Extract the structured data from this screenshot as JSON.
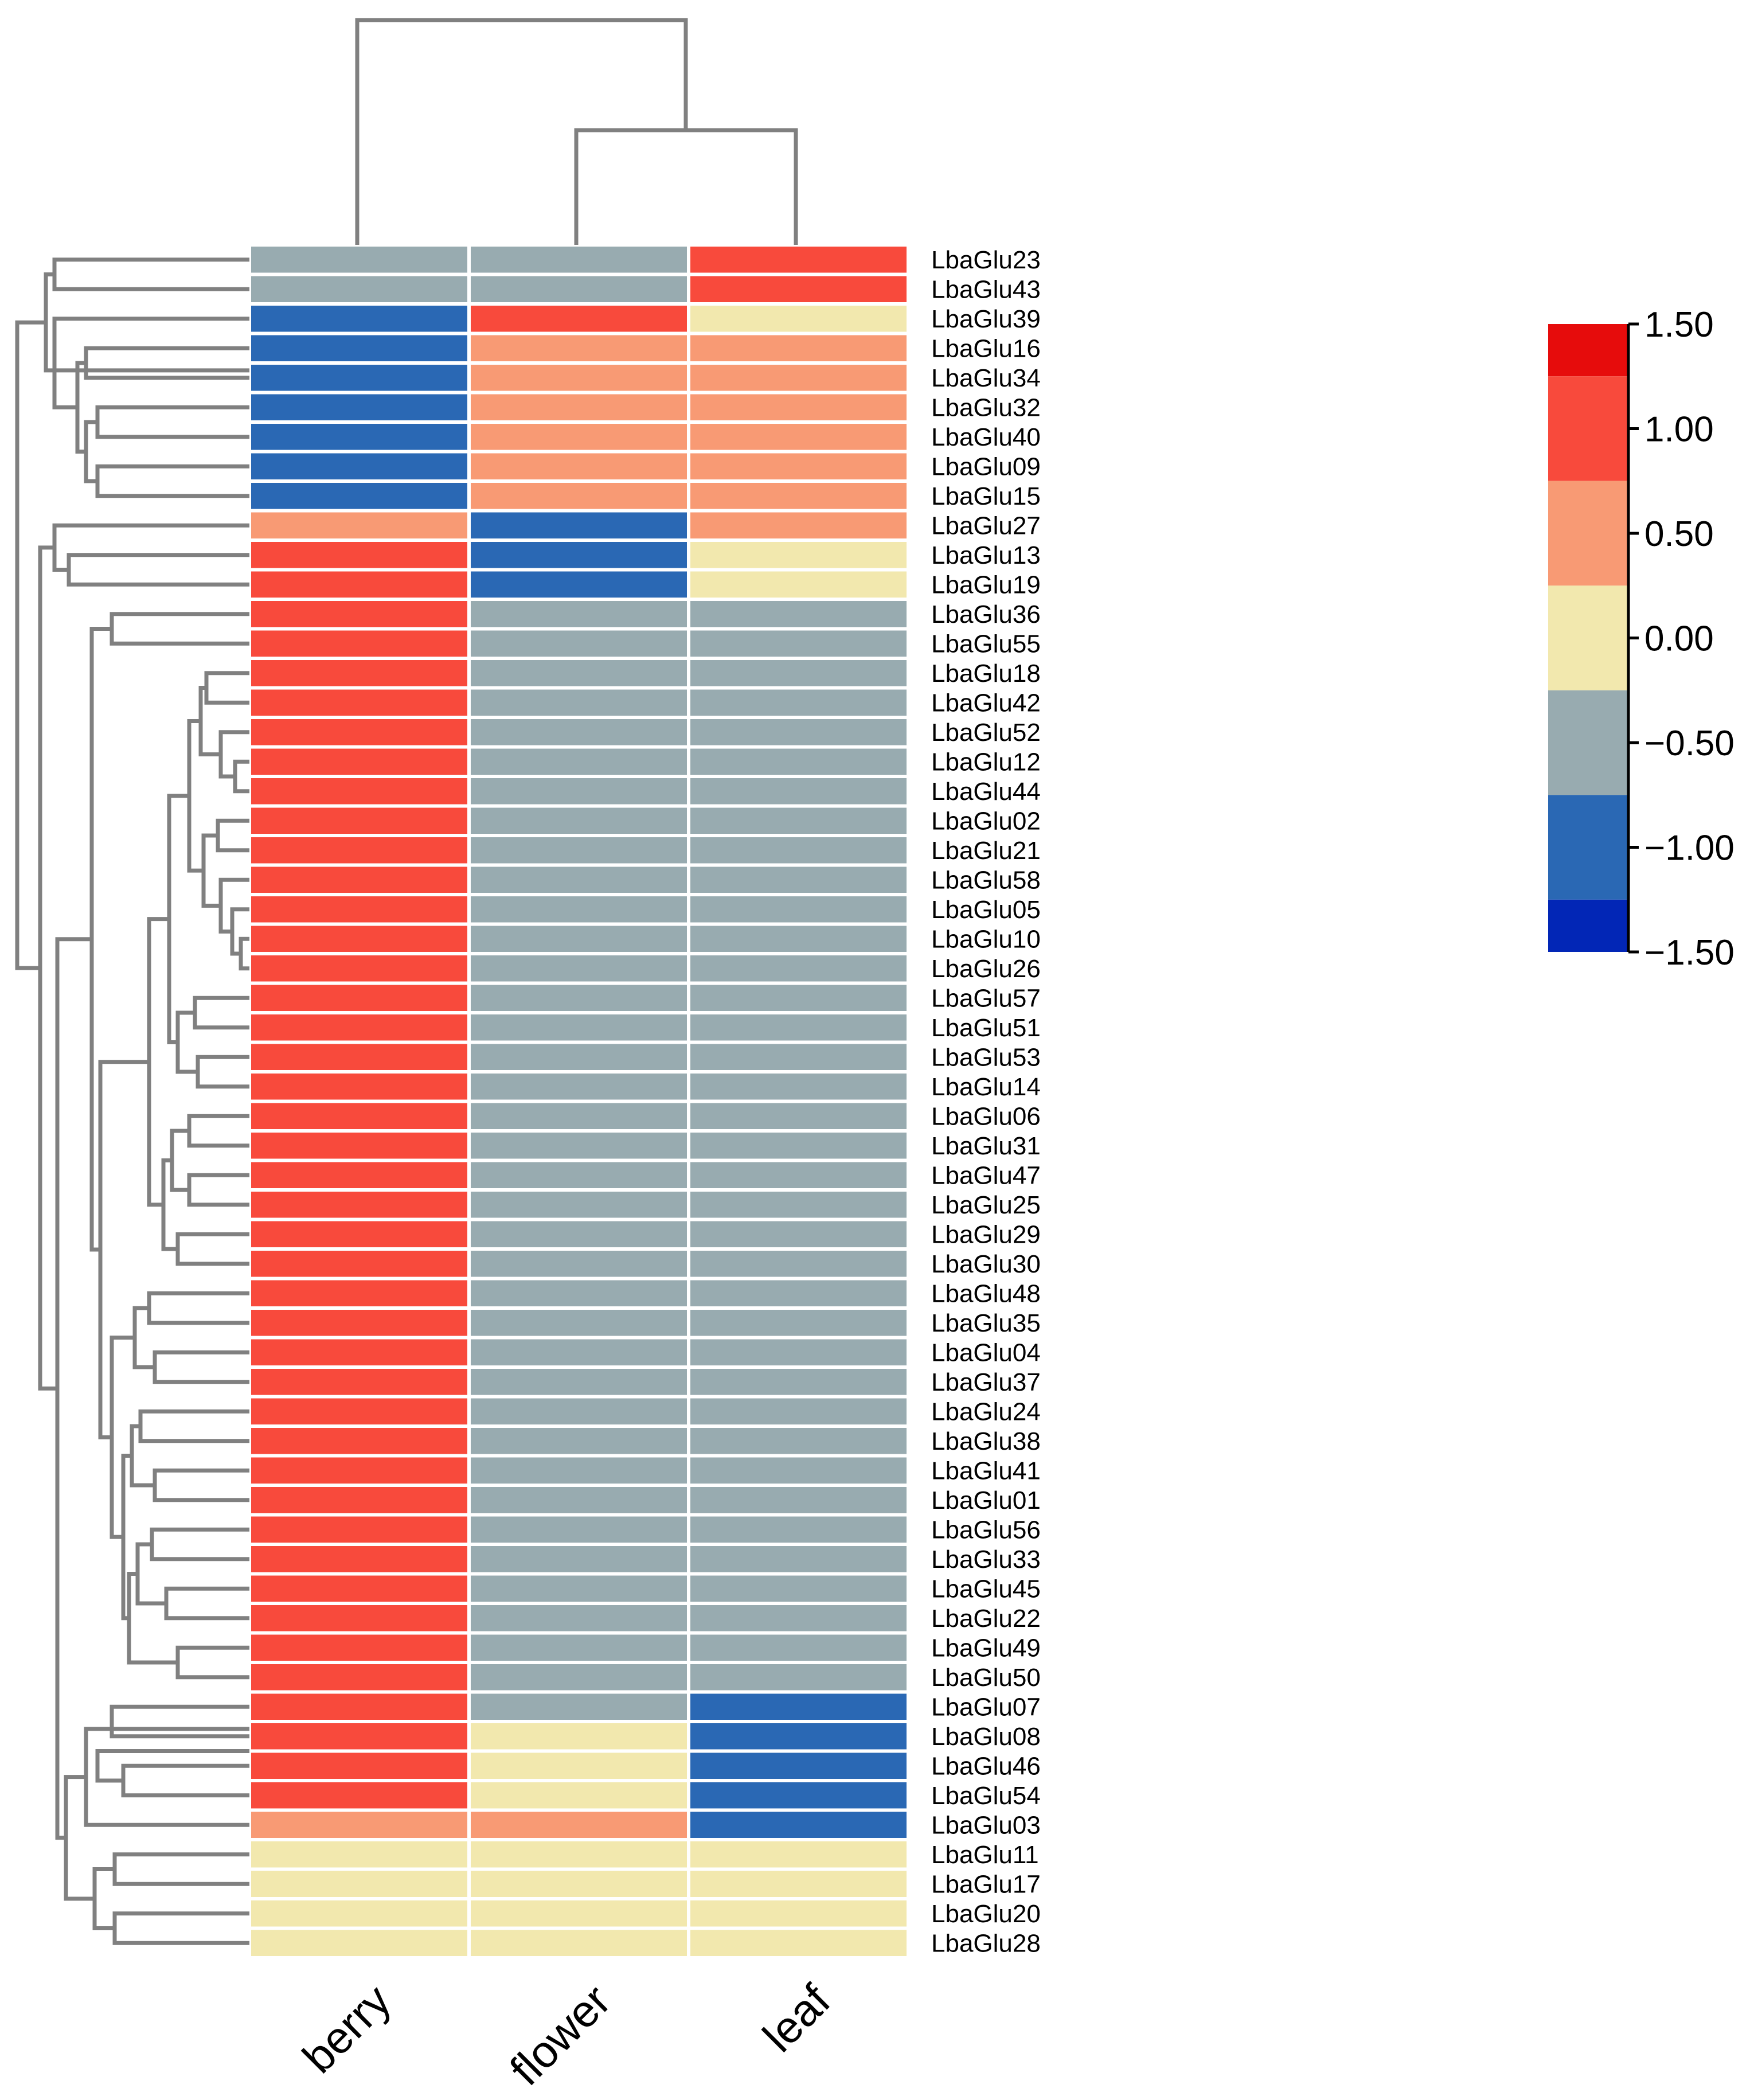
{
  "chart_data": {
    "type": "heatmap",
    "title": "",
    "columns": [
      "berry",
      "flower",
      "leaf"
    ],
    "rows": [
      {
        "gene": "LbaGlu23",
        "values": [
          -0.5,
          -0.5,
          1.0
        ]
      },
      {
        "gene": "LbaGlu43",
        "values": [
          -0.5,
          -0.5,
          1.0
        ]
      },
      {
        "gene": "LbaGlu39",
        "values": [
          -1.0,
          1.0,
          0.0
        ]
      },
      {
        "gene": "LbaGlu16",
        "values": [
          -1.0,
          0.5,
          0.5
        ]
      },
      {
        "gene": "LbaGlu34",
        "values": [
          -1.0,
          0.5,
          0.5
        ]
      },
      {
        "gene": "LbaGlu32",
        "values": [
          -1.0,
          0.5,
          0.5
        ]
      },
      {
        "gene": "LbaGlu40",
        "values": [
          -1.0,
          0.5,
          0.5
        ]
      },
      {
        "gene": "LbaGlu09",
        "values": [
          -1.0,
          0.5,
          0.5
        ]
      },
      {
        "gene": "LbaGlu15",
        "values": [
          -1.0,
          0.5,
          0.5
        ]
      },
      {
        "gene": "LbaGlu27",
        "values": [
          0.5,
          -1.0,
          0.5
        ]
      },
      {
        "gene": "LbaGlu13",
        "values": [
          1.0,
          -1.0,
          0.0
        ]
      },
      {
        "gene": "LbaGlu19",
        "values": [
          1.0,
          -1.0,
          0.0
        ]
      },
      {
        "gene": "LbaGlu36",
        "values": [
          1.0,
          -0.5,
          -0.5
        ]
      },
      {
        "gene": "LbaGlu55",
        "values": [
          1.0,
          -0.5,
          -0.5
        ]
      },
      {
        "gene": "LbaGlu18",
        "values": [
          1.0,
          -0.5,
          -0.5
        ]
      },
      {
        "gene": "LbaGlu42",
        "values": [
          1.0,
          -0.5,
          -0.5
        ]
      },
      {
        "gene": "LbaGlu52",
        "values": [
          1.0,
          -0.5,
          -0.5
        ]
      },
      {
        "gene": "LbaGlu12",
        "values": [
          1.0,
          -0.5,
          -0.5
        ]
      },
      {
        "gene": "LbaGlu44",
        "values": [
          1.0,
          -0.5,
          -0.5
        ]
      },
      {
        "gene": "LbaGlu02",
        "values": [
          1.0,
          -0.5,
          -0.5
        ]
      },
      {
        "gene": "LbaGlu21",
        "values": [
          1.0,
          -0.5,
          -0.5
        ]
      },
      {
        "gene": "LbaGlu58",
        "values": [
          1.0,
          -0.5,
          -0.5
        ]
      },
      {
        "gene": "LbaGlu05",
        "values": [
          1.0,
          -0.5,
          -0.5
        ]
      },
      {
        "gene": "LbaGlu10",
        "values": [
          1.0,
          -0.5,
          -0.5
        ]
      },
      {
        "gene": "LbaGlu26",
        "values": [
          1.0,
          -0.5,
          -0.5
        ]
      },
      {
        "gene": "LbaGlu57",
        "values": [
          1.0,
          -0.5,
          -0.5
        ]
      },
      {
        "gene": "LbaGlu51",
        "values": [
          1.0,
          -0.5,
          -0.5
        ]
      },
      {
        "gene": "LbaGlu53",
        "values": [
          1.0,
          -0.5,
          -0.5
        ]
      },
      {
        "gene": "LbaGlu14",
        "values": [
          1.0,
          -0.5,
          -0.5
        ]
      },
      {
        "gene": "LbaGlu06",
        "values": [
          1.0,
          -0.5,
          -0.5
        ]
      },
      {
        "gene": "LbaGlu31",
        "values": [
          1.0,
          -0.5,
          -0.5
        ]
      },
      {
        "gene": "LbaGlu47",
        "values": [
          1.0,
          -0.5,
          -0.5
        ]
      },
      {
        "gene": "LbaGlu25",
        "values": [
          1.0,
          -0.5,
          -0.5
        ]
      },
      {
        "gene": "LbaGlu29",
        "values": [
          1.0,
          -0.5,
          -0.5
        ]
      },
      {
        "gene": "LbaGlu30",
        "values": [
          1.0,
          -0.5,
          -0.5
        ]
      },
      {
        "gene": "LbaGlu48",
        "values": [
          1.0,
          -0.5,
          -0.5
        ]
      },
      {
        "gene": "LbaGlu35",
        "values": [
          1.0,
          -0.5,
          -0.5
        ]
      },
      {
        "gene": "LbaGlu04",
        "values": [
          1.0,
          -0.5,
          -0.5
        ]
      },
      {
        "gene": "LbaGlu37",
        "values": [
          1.0,
          -0.5,
          -0.5
        ]
      },
      {
        "gene": "LbaGlu24",
        "values": [
          1.0,
          -0.5,
          -0.5
        ]
      },
      {
        "gene": "LbaGlu38",
        "values": [
          1.0,
          -0.5,
          -0.5
        ]
      },
      {
        "gene": "LbaGlu41",
        "values": [
          1.0,
          -0.5,
          -0.5
        ]
      },
      {
        "gene": "LbaGlu01",
        "values": [
          1.0,
          -0.5,
          -0.5
        ]
      },
      {
        "gene": "LbaGlu56",
        "values": [
          1.0,
          -0.5,
          -0.5
        ]
      },
      {
        "gene": "LbaGlu33",
        "values": [
          1.0,
          -0.5,
          -0.5
        ]
      },
      {
        "gene": "LbaGlu45",
        "values": [
          1.0,
          -0.5,
          -0.5
        ]
      },
      {
        "gene": "LbaGlu22",
        "values": [
          1.0,
          -0.5,
          -0.5
        ]
      },
      {
        "gene": "LbaGlu49",
        "values": [
          1.0,
          -0.5,
          -0.5
        ]
      },
      {
        "gene": "LbaGlu50",
        "values": [
          1.0,
          -0.5,
          -0.5
        ]
      },
      {
        "gene": "LbaGlu07",
        "values": [
          1.0,
          -0.5,
          -1.0
        ]
      },
      {
        "gene": "LbaGlu08",
        "values": [
          1.0,
          0.0,
          -1.0
        ]
      },
      {
        "gene": "LbaGlu46",
        "values": [
          1.0,
          0.0,
          -1.0
        ]
      },
      {
        "gene": "LbaGlu54",
        "values": [
          1.0,
          0.0,
          -1.0
        ]
      },
      {
        "gene": "LbaGlu03",
        "values": [
          0.5,
          0.5,
          -1.0
        ]
      },
      {
        "gene": "LbaGlu11",
        "values": [
          0.0,
          0.0,
          0.0
        ]
      },
      {
        "gene": "LbaGlu17",
        "values": [
          0.0,
          0.0,
          0.0
        ]
      },
      {
        "gene": "LbaGlu20",
        "values": [
          0.0,
          0.0,
          0.0
        ]
      },
      {
        "gene": "LbaGlu28",
        "values": [
          0.0,
          0.0,
          0.0
        ]
      }
    ],
    "color_scale": {
      "range": [
        -1.5,
        1.5
      ],
      "tick_labels": [
        "1.50",
        "1.00",
        "0.50",
        "0.00",
        "−0.50",
        "−1.00",
        "−1.50"
      ],
      "bins": [
        {
          "min": 1.25,
          "max": 1.5,
          "color": "#e60c0c"
        },
        {
          "min": 0.75,
          "max": 1.25,
          "color": "#f84a3c"
        },
        {
          "min": 0.25,
          "max": 0.75,
          "color": "#f89a74"
        },
        {
          "min": -0.25,
          "max": 0.25,
          "color": "#f2e8ae"
        },
        {
          "min": -0.75,
          "max": -0.25,
          "color": "#98abb0"
        },
        {
          "min": -1.25,
          "max": -0.75,
          "color": "#2a68b4"
        },
        {
          "min": -1.5,
          "max": -1.25,
          "color": "#0226b6"
        }
      ]
    },
    "dendrograms": {
      "columns": "flower and leaf cluster first, then join berry",
      "rows": "hierarchical clustering of genes"
    }
  }
}
